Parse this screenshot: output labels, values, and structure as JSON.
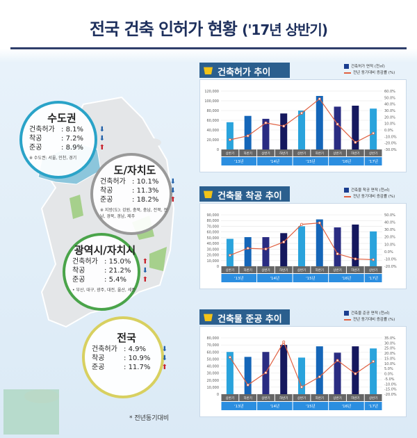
{
  "title": {
    "main": "전국 건축 인허가 현황",
    "sub": "('17년 상반기)"
  },
  "regions": [
    {
      "name": "수도권",
      "rows": [
        {
          "k": "건축허가",
          "v": "8.1%",
          "dir": "down"
        },
        {
          "k": "착공",
          "v": "7.2%",
          "dir": "down"
        },
        {
          "k": "준공",
          "v": "8.9%",
          "dir": "up"
        }
      ],
      "note": "※ 수도권: 서울, 인천, 경기"
    },
    {
      "name": "도/자치도",
      "rows": [
        {
          "k": "건축허가",
          "v": "10.1%",
          "dir": "down"
        },
        {
          "k": "착공",
          "v": "11.3%",
          "dir": "down"
        },
        {
          "k": "준공",
          "v": "18.2%",
          "dir": "up"
        }
      ],
      "note": "※ 지방(도): 강원, 충북, 충남, 전북, 전남, 경북, 경남, 제주"
    },
    {
      "name": "광역시/자치시",
      "rows": [
        {
          "k": "건축허가",
          "v": "15.0%",
          "dir": "up"
        },
        {
          "k": "착공",
          "v": "21.2%",
          "dir": "down"
        },
        {
          "k": "준공",
          "v": "5.4%",
          "dir": "up"
        }
      ],
      "note": "• 부산, 대구, 광주, 대전, 울산, 세종"
    },
    {
      "name": "전국",
      "rows": [
        {
          "k": "건축허가",
          "v": "4.9%",
          "dir": "down"
        },
        {
          "k": "착공",
          "v": "10.9%",
          "dir": "down"
        },
        {
          "k": "준공",
          "v": "11.7%",
          "dir": "up"
        }
      ],
      "note": ""
    }
  ],
  "footnote": "* 전년동기대비",
  "colors": {
    "light": "#2aa3dc",
    "mid": "#1566b8",
    "dark": "#2a2c82",
    "navy": "#15185e",
    "line": "#e06040"
  },
  "chart_data": [
    {
      "type": "bar",
      "title": "건축허가 추이",
      "legend": [
        "건축허가 면적 (천㎡)",
        "전년 동기대비 증감률 (%)"
      ],
      "categories": [
        "상반기",
        "하반기",
        "상반기",
        "하반기",
        "상반기",
        "하반기",
        "상반기",
        "하반기",
        "상반기"
      ],
      "years": [
        "'13년",
        "'14년",
        "'15년",
        "'16년",
        "'17년"
      ],
      "values": [
        56000,
        69000,
        63000,
        74000,
        80000,
        110000,
        88000,
        90000,
        84000
      ],
      "rate": [
        -15,
        -9,
        11,
        6,
        26,
        48,
        9,
        -19,
        -5
      ],
      "ylim": [
        0,
        120000
      ],
      "ystep": 20000,
      "y2lim": [
        -30,
        60
      ],
      "y2step": 10
    },
    {
      "type": "bar",
      "title": "건축물 착공 추이",
      "legend": [
        "건축물 착공 면적 (천㎡)",
        "전년 동기대비 증감률 (%)"
      ],
      "categories": [
        "상반기",
        "하반기",
        "상반기",
        "하반기",
        "상반기",
        "하반기",
        "상반기",
        "하반기",
        "상반기"
      ],
      "years": [
        "'13년",
        "'14년",
        "'15년",
        "'16년",
        "'17년"
      ],
      "values": [
        48000,
        51000,
        51000,
        58000,
        70000,
        82000,
        68000,
        73000,
        61000
      ],
      "rate": [
        -5,
        4.5,
        3.5,
        13,
        37,
        39,
        -3,
        -10,
        -11
      ],
      "ylim": [
        0,
        90000
      ],
      "ystep": 10000,
      "y2lim": [
        -20,
        50
      ],
      "y2step": 10
    },
    {
      "type": "bar",
      "title": "건축물 준공 추이",
      "legend": [
        "건축물 준공 면적 (천㎡)",
        "전년 동기대비 증감률 (%)"
      ],
      "categories": [
        "상반기",
        "하반기",
        "상반기",
        "하반기",
        "상반기",
        "하반기",
        "상반기",
        "하반기",
        "상반기"
      ],
      "years": [
        "'13년",
        "'14년",
        "'15년",
        "'16년",
        "'17년"
      ],
      "values": [
        60000,
        53000,
        60000,
        70000,
        52000,
        68000,
        59000,
        68000,
        65000
      ],
      "rate": [
        16,
        -11,
        1,
        31,
        -13,
        -3,
        13,
        0,
        12
      ],
      "ylim": [
        0,
        80000
      ],
      "ystep": 10000,
      "y2lim": [
        -20,
        35
      ],
      "y2step": 5
    }
  ]
}
